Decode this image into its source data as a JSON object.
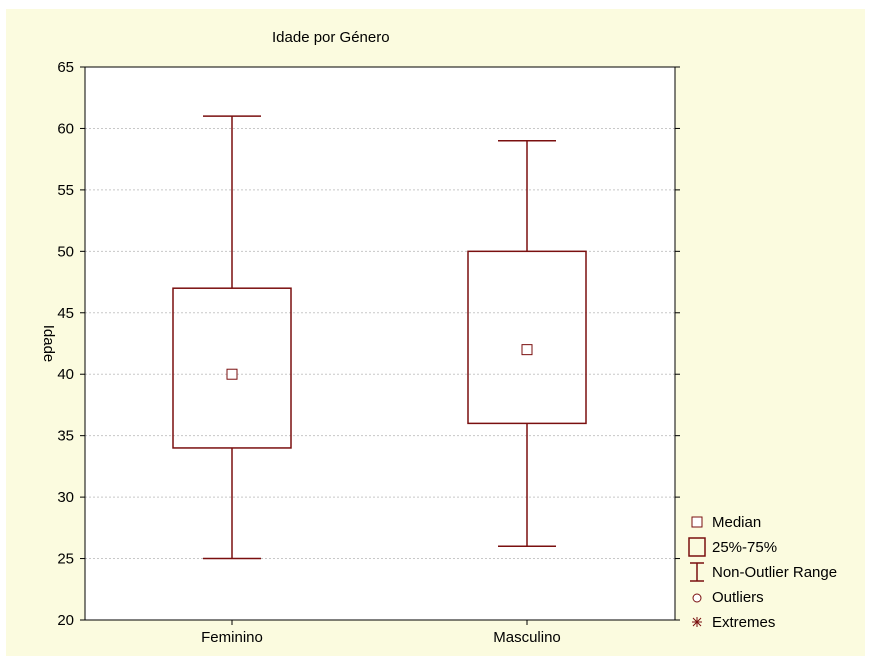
{
  "chart_data": {
    "type": "box",
    "title": "Idade por Género",
    "xlabel": "",
    "ylabel": "Idade",
    "ylim": [
      20,
      65
    ],
    "yticks": [
      20,
      25,
      30,
      35,
      40,
      45,
      50,
      55,
      60,
      65
    ],
    "grid": true,
    "legend_position": "right-bottom",
    "categories": [
      "Feminino",
      "Masculino"
    ],
    "boxes": [
      {
        "category": "Feminino",
        "min": 25,
        "q1": 34,
        "median": 40,
        "q3": 47,
        "max": 61
      },
      {
        "category": "Masculino",
        "min": 26,
        "q1": 36,
        "median": 42,
        "q3": 50,
        "max": 59
      }
    ],
    "legend": [
      {
        "label": "Median",
        "symbol": "small-square"
      },
      {
        "label": "25%-75%",
        "symbol": "box"
      },
      {
        "label": "Non-Outlier Range",
        "symbol": "whisker"
      },
      {
        "label": "Outliers",
        "symbol": "circle"
      },
      {
        "label": "Extremes",
        "symbol": "asterisk"
      }
    ],
    "colors": {
      "box": "#7a0f0f",
      "frame_bg": "#fbfbdf",
      "plot_bg": "#ffffff",
      "grid": "#c8c8c8",
      "axis": "#000000"
    }
  }
}
